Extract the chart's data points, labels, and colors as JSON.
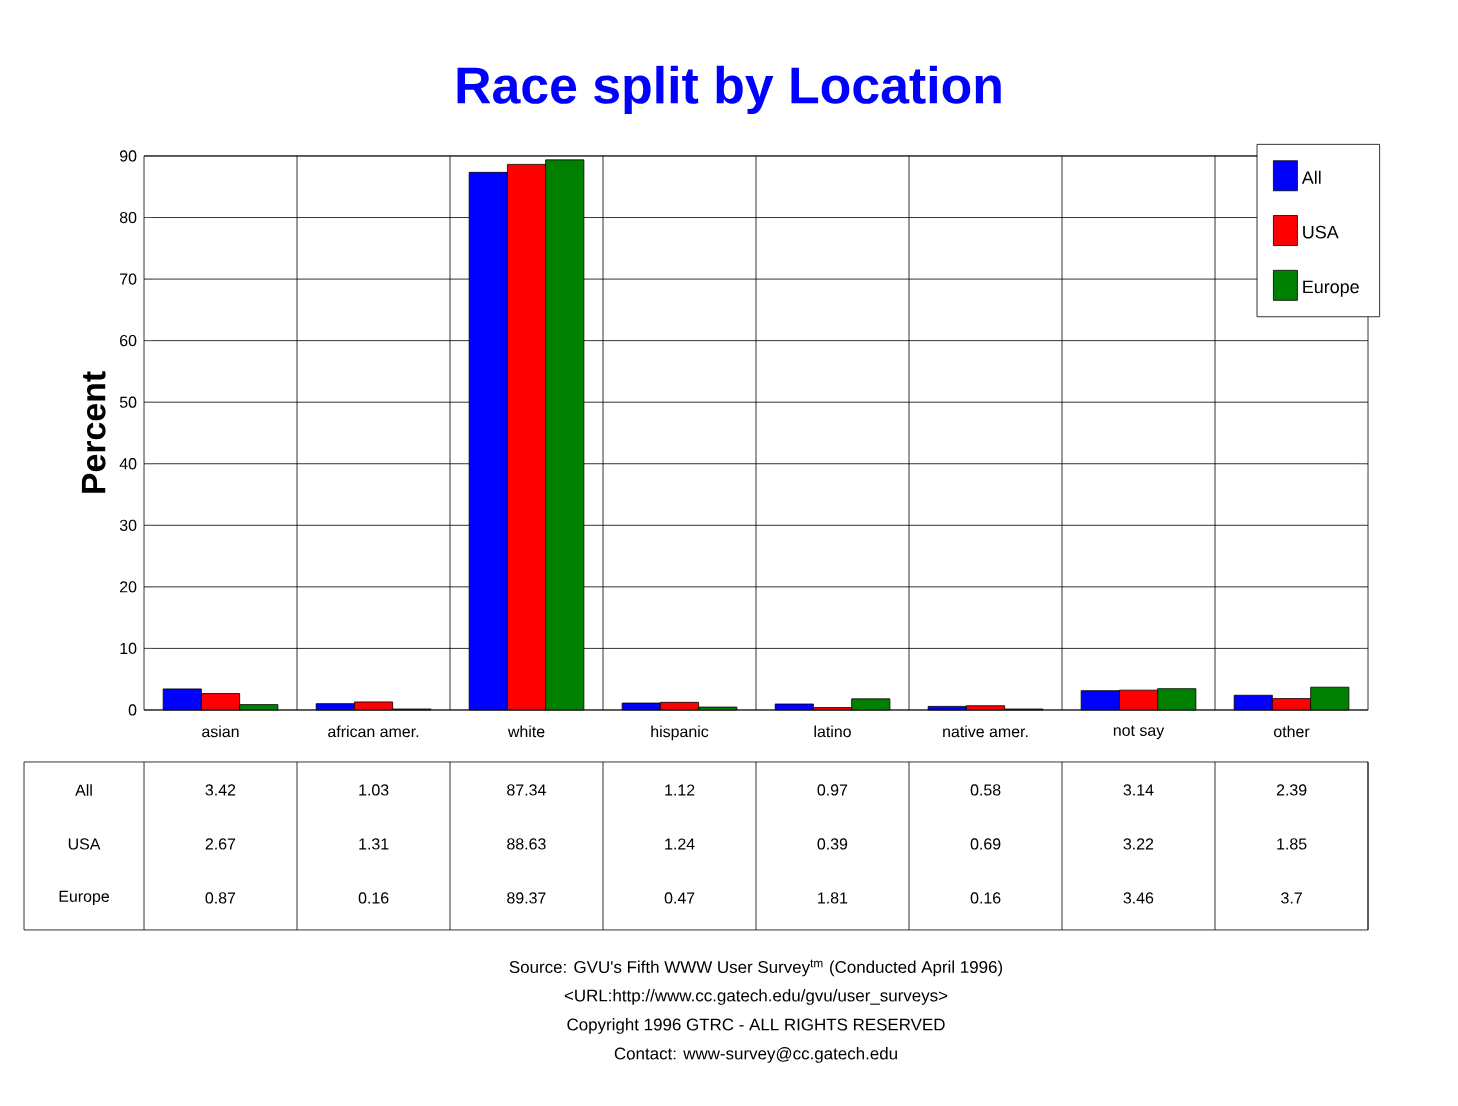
{
  "chart_data": {
    "type": "bar",
    "title": "Race split by Location",
    "ylabel": "Percent",
    "categories": [
      "asian",
      "african amer.",
      "white",
      "hispanic",
      "latino",
      "native amer.",
      "not say",
      "other"
    ],
    "series": [
      {
        "name": "All",
        "color": "#0000ff",
        "values": [
          3.42,
          1.03,
          87.34,
          1.12,
          0.97,
          0.58,
          3.14,
          2.39
        ]
      },
      {
        "name": "USA",
        "color": "#ff0000",
        "values": [
          2.67,
          1.31,
          88.63,
          1.24,
          0.39,
          0.69,
          3.22,
          1.85
        ]
      },
      {
        "name": "Europe",
        "color": "#008000",
        "values": [
          0.87,
          0.16,
          89.37,
          0.47,
          1.81,
          0.16,
          3.46,
          3.7
        ]
      }
    ],
    "ylim": [
      0,
      90
    ],
    "yticks": [
      0,
      10,
      20,
      30,
      40,
      50,
      60,
      70,
      80,
      90
    ],
    "grid": true,
    "legend": "top right",
    "data_labels": true,
    "annotations": [
      "Source: GVU's Fifth WWW User Survey$^{tm}$  (Conducted April 1996)",
      "<URL:http://www.cc.gatech.edu/gvu/user_surveys>",
      "Copyright 1996 GTRC -  ALL RIGHTS RESERVED",
      "Contact: www-survey@cc.gatech.edu"
    ]
  }
}
